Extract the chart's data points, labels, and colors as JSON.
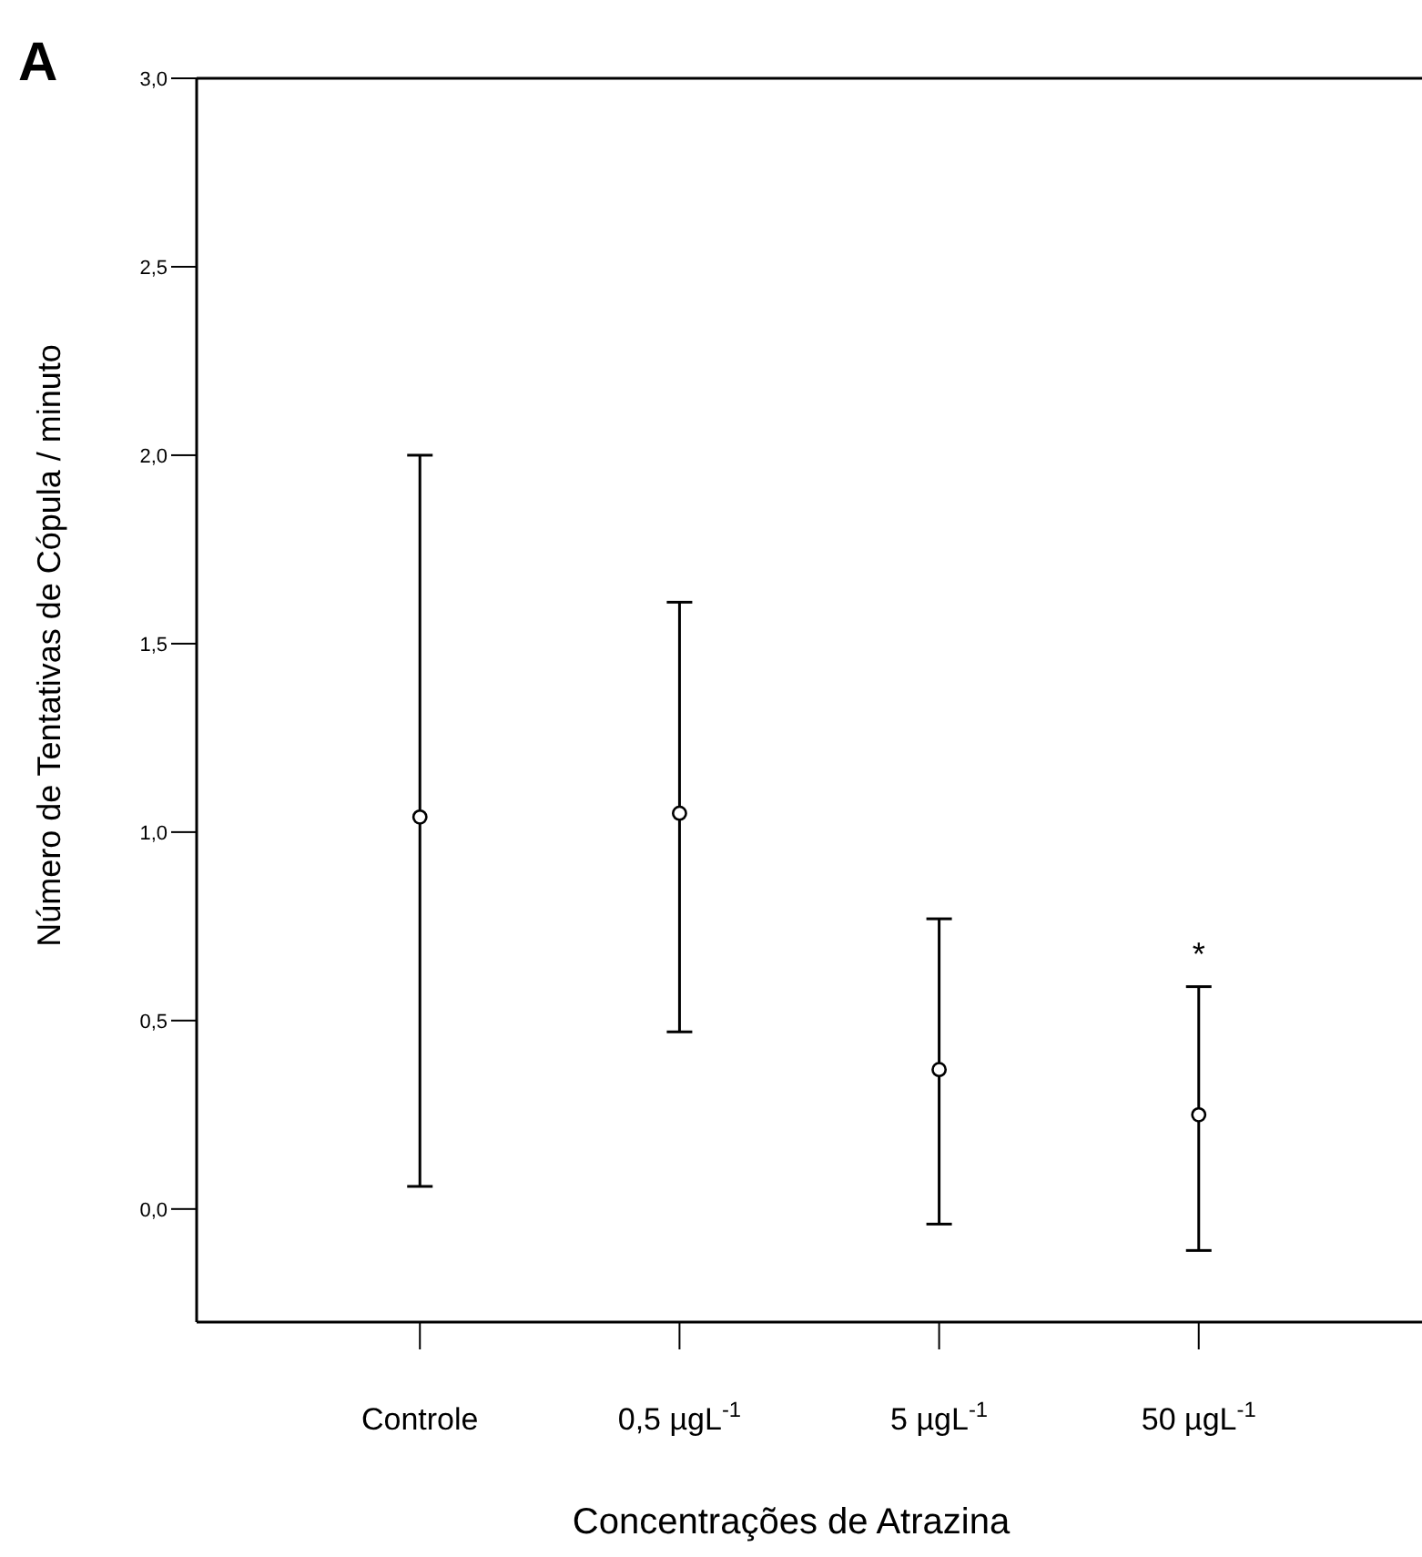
{
  "chart_data": {
    "type": "scatter",
    "title": "A",
    "xlabel": "Concentrações de Atrazina",
    "ylabel": "Número de Tentativas de Cópula / minuto",
    "categories": [
      "Controle",
      "0,5 µgL$^{-1}$",
      "5 µgL$^{-1}$",
      "50 µgL$^{-1}$"
    ],
    "series": [
      {
        "color": "#000000",
        "values": [
          1.04,
          1.05,
          0.37,
          0.25
        ],
        "errors": [
          [
            0.06,
            2.0
          ],
          [
            0.47,
            1.61
          ],
          [
            -0.04,
            0.77
          ],
          [
            -0.11,
            0.59
          ]
        ]
      }
    ],
    "ylim": [
      -0.3,
      3.0
    ],
    "yticks": [
      {
        "value": 0,
        "label": "0,0"
      },
      {
        "value": 0.5,
        "label": "0,5"
      },
      {
        "value": 1,
        "label": "1,0"
      },
      {
        "value": 1.5,
        "label": "1,5"
      },
      {
        "value": 2,
        "label": "2,0"
      },
      {
        "value": 2.5,
        "label": "2,5"
      },
      {
        "value": 3,
        "label": "3,0"
      }
    ],
    "marker": "circle",
    "grid": false,
    "annotations": [
      "*"
    ]
  }
}
